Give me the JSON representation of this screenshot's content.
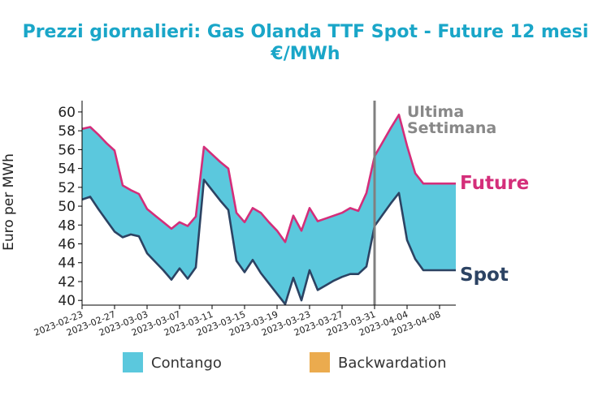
{
  "chart_data": {
    "type": "area",
    "title": "Prezzi giornalieri: Gas Olanda TTF Spot - Future 12 mesi",
    "subtitle": "€/MWh",
    "ylabel": "Euro per MWh",
    "xlabel": "",
    "ylim": [
      39.5,
      61.2
    ],
    "yticks": [
      40,
      42,
      44,
      46,
      48,
      50,
      52,
      54,
      56,
      58,
      60
    ],
    "xlim": [
      "2023-02-23",
      "2023-04-10"
    ],
    "xticks": [
      "2023-02-23",
      "2023-02-27",
      "2023-03-03",
      "2023-03-07",
      "2023-03-11",
      "2023-03-15",
      "2023-03-19",
      "2023-03-23",
      "2023-03-27",
      "2023-03-31",
      "2023-04-04",
      "2023-04-08"
    ],
    "grid": false,
    "legend_position": "bottom",
    "legend": [
      "Contango",
      "Backwardation"
    ],
    "colors": {
      "title": "#1aa6c8",
      "future": "#d42e7a",
      "spot": "#2c4363",
      "contango": "#5bc8dd",
      "backwardation": "#ebab4e",
      "week_marker": "#808080"
    },
    "annotations": {
      "week_label_1": "Ultima",
      "week_label_2": "Settimana",
      "week_marker_date": "2023-03-31",
      "future_label": "Future",
      "spot_label": "Spot"
    },
    "series": [
      {
        "name": "Future",
        "points": [
          [
            "2023-02-23",
            58.2
          ],
          [
            "2023-02-24",
            58.4
          ],
          [
            "2023-02-25",
            57.6
          ],
          [
            "2023-02-26",
            56.7
          ],
          [
            "2023-02-27",
            55.9
          ],
          [
            "2023-02-28",
            52.2
          ],
          [
            "2023-03-01",
            51.7
          ],
          [
            "2023-03-02",
            51.3
          ],
          [
            "2023-03-03",
            49.7
          ],
          [
            "2023-03-04",
            49.0
          ],
          [
            "2023-03-05",
            48.3
          ],
          [
            "2023-03-06",
            47.6
          ],
          [
            "2023-03-07",
            48.3
          ],
          [
            "2023-03-08",
            47.9
          ],
          [
            "2023-03-09",
            48.9
          ],
          [
            "2023-03-10",
            56.3
          ],
          [
            "2023-03-11",
            55.5
          ],
          [
            "2023-03-12",
            54.7
          ],
          [
            "2023-03-13",
            54.0
          ],
          [
            "2023-03-14",
            49.3
          ],
          [
            "2023-03-15",
            48.3
          ],
          [
            "2023-03-16",
            49.8
          ],
          [
            "2023-03-17",
            49.3
          ],
          [
            "2023-03-18",
            48.3
          ],
          [
            "2023-03-19",
            47.4
          ],
          [
            "2023-03-20",
            46.2
          ],
          [
            "2023-03-21",
            49.0
          ],
          [
            "2023-03-22",
            47.4
          ],
          [
            "2023-03-23",
            49.8
          ],
          [
            "2023-03-24",
            48.4
          ],
          [
            "2023-03-25",
            48.7
          ],
          [
            "2023-03-26",
            49.0
          ],
          [
            "2023-03-27",
            49.3
          ],
          [
            "2023-03-28",
            49.8
          ],
          [
            "2023-03-29",
            49.5
          ],
          [
            "2023-03-30",
            51.4
          ],
          [
            "2023-03-31",
            55.3
          ],
          [
            "2023-04-01",
            56.8
          ],
          [
            "2023-04-02",
            58.3
          ],
          [
            "2023-04-03",
            59.7
          ],
          [
            "2023-04-04",
            56.4
          ],
          [
            "2023-04-05",
            53.5
          ],
          [
            "2023-04-06",
            52.4
          ],
          [
            "2023-04-07",
            52.4
          ],
          [
            "2023-04-08",
            52.4
          ],
          [
            "2023-04-09",
            52.4
          ],
          [
            "2023-04-10",
            52.4
          ]
        ]
      },
      {
        "name": "Spot",
        "points": [
          [
            "2023-02-23",
            50.7
          ],
          [
            "2023-02-24",
            51.0
          ],
          [
            "2023-02-25",
            49.7
          ],
          [
            "2023-02-26",
            48.5
          ],
          [
            "2023-02-27",
            47.3
          ],
          [
            "2023-02-28",
            46.7
          ],
          [
            "2023-03-01",
            47.0
          ],
          [
            "2023-03-02",
            46.8
          ],
          [
            "2023-03-03",
            45.0
          ],
          [
            "2023-03-04",
            44.1
          ],
          [
            "2023-03-05",
            43.2
          ],
          [
            "2023-03-06",
            42.2
          ],
          [
            "2023-03-07",
            43.4
          ],
          [
            "2023-03-08",
            42.3
          ],
          [
            "2023-03-09",
            43.5
          ],
          [
            "2023-03-10",
            52.8
          ],
          [
            "2023-03-11",
            51.7
          ],
          [
            "2023-03-12",
            50.6
          ],
          [
            "2023-03-13",
            49.6
          ],
          [
            "2023-03-14",
            44.2
          ],
          [
            "2023-03-15",
            43.0
          ],
          [
            "2023-03-16",
            44.3
          ],
          [
            "2023-03-17",
            42.9
          ],
          [
            "2023-03-18",
            41.8
          ],
          [
            "2023-03-19",
            40.7
          ],
          [
            "2023-03-20",
            39.6
          ],
          [
            "2023-03-21",
            42.4
          ],
          [
            "2023-03-22",
            40.0
          ],
          [
            "2023-03-23",
            43.2
          ],
          [
            "2023-03-24",
            41.1
          ],
          [
            "2023-03-25",
            41.6
          ],
          [
            "2023-03-26",
            42.1
          ],
          [
            "2023-03-27",
            42.5
          ],
          [
            "2023-03-28",
            42.8
          ],
          [
            "2023-03-29",
            42.8
          ],
          [
            "2023-03-30",
            43.6
          ],
          [
            "2023-03-31",
            47.9
          ],
          [
            "2023-04-01",
            49.1
          ],
          [
            "2023-04-02",
            50.3
          ],
          [
            "2023-04-03",
            51.4
          ],
          [
            "2023-04-04",
            46.4
          ],
          [
            "2023-04-05",
            44.4
          ],
          [
            "2023-04-06",
            43.2
          ],
          [
            "2023-04-07",
            43.2
          ],
          [
            "2023-04-08",
            43.2
          ],
          [
            "2023-04-09",
            43.2
          ],
          [
            "2023-04-10",
            43.2
          ]
        ]
      }
    ]
  }
}
